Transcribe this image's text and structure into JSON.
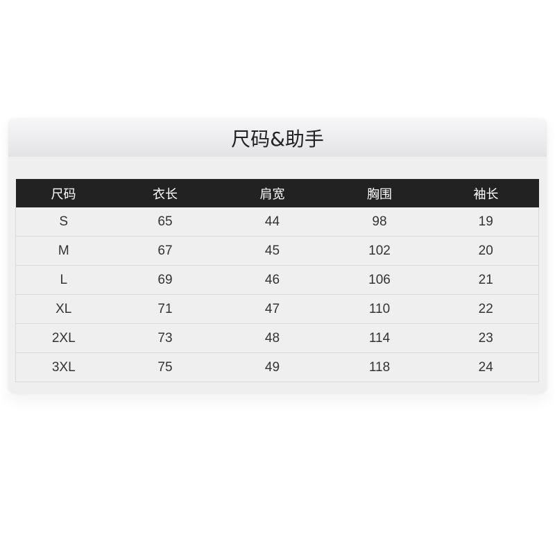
{
  "title": "尺码&助手",
  "table": {
    "headers": [
      "尺码",
      "衣长",
      "肩宽",
      "胸围",
      "袖长"
    ],
    "rows": [
      [
        "S",
        "65",
        "44",
        "98",
        "19"
      ],
      [
        "M",
        "67",
        "45",
        "102",
        "20"
      ],
      [
        "L",
        "69",
        "46",
        "106",
        "21"
      ],
      [
        "XL",
        "71",
        "47",
        "110",
        "22"
      ],
      [
        "2XL",
        "73",
        "48",
        "114",
        "23"
      ],
      [
        "3XL",
        "75",
        "49",
        "118",
        "24"
      ]
    ]
  },
  "colors": {
    "header_bg": "#222222",
    "card_bg": "#efeff0"
  }
}
